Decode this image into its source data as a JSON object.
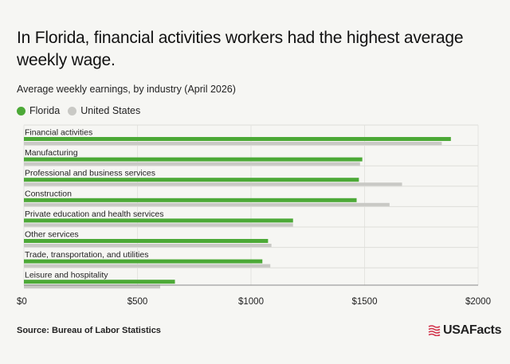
{
  "headline": "In Florida, financial activities workers had the highest average weekly wage.",
  "subtitle": "Average weekly earnings, by industry (April 2026)",
  "source": "Source: Bureau of Labor Statistics",
  "logo": {
    "text": "USAFacts",
    "icon": "usafacts-flag-icon"
  },
  "colors": {
    "florida": "#4ca937",
    "us": "#c9c9c5"
  },
  "chart_data": {
    "type": "bar",
    "orientation": "horizontal",
    "title": "Average weekly earnings, by industry (April 2026)",
    "categories": [
      "Financial activities",
      "Manufacturing",
      "Professional and business services",
      "Construction",
      "Private education and health services",
      "Other services",
      "Trade, transportation, and utilities",
      "Leisure and hospitality"
    ],
    "series": [
      {
        "name": "Florida",
        "color": "#4ca937",
        "values": [
          1880,
          1490,
          1475,
          1465,
          1185,
          1075,
          1050,
          665
        ]
      },
      {
        "name": "United States",
        "color": "#c9c9c5",
        "values": [
          1840,
          1480,
          1665,
          1610,
          1185,
          1090,
          1085,
          600
        ]
      }
    ],
    "xlim": [
      0,
      2000
    ],
    "xticks": [
      0,
      500,
      1000,
      1500,
      2000
    ],
    "xtick_labels": [
      "$0",
      "$500",
      "$1000",
      "$1500",
      "$2000"
    ],
    "grid": true,
    "legend": "top-left"
  }
}
